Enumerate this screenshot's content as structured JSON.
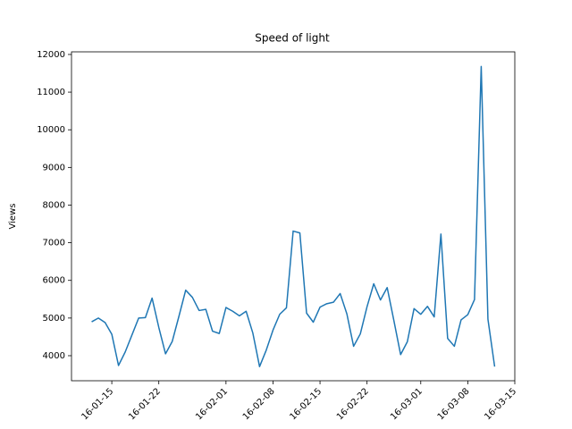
{
  "chart_data": {
    "type": "line",
    "title": "Speed of light",
    "ylabel": "Views",
    "x": [
      "16-01-12",
      "16-01-13",
      "16-01-14",
      "16-01-15",
      "16-01-16",
      "16-01-17",
      "16-01-18",
      "16-01-19",
      "16-01-20",
      "16-01-21",
      "16-01-22",
      "16-01-23",
      "16-01-24",
      "16-01-25",
      "16-01-26",
      "16-01-27",
      "16-01-28",
      "16-01-29",
      "16-01-30",
      "16-01-31",
      "16-02-01",
      "16-02-02",
      "16-02-03",
      "16-02-04",
      "16-02-05",
      "16-02-06",
      "16-02-07",
      "16-02-08",
      "16-02-09",
      "16-02-10",
      "16-02-11",
      "16-02-12",
      "16-02-13",
      "16-02-14",
      "16-02-15",
      "16-02-16",
      "16-02-17",
      "16-02-18",
      "16-02-19",
      "16-02-20",
      "16-02-21",
      "16-02-22",
      "16-02-23",
      "16-02-24",
      "16-02-25",
      "16-02-26",
      "16-02-27",
      "16-02-28",
      "16-02-29",
      "16-03-01",
      "16-03-02",
      "16-03-03",
      "16-03-04",
      "16-03-05",
      "16-03-06",
      "16-03-07",
      "16-03-08",
      "16-03-09",
      "16-03-10",
      "16-03-11",
      "16-03-12"
    ],
    "series": [
      {
        "color": "#1f77b4",
        "values": [
          4900,
          5000,
          4880,
          4570,
          3740,
          4100,
          4550,
          5000,
          5010,
          5530,
          4750,
          4050,
          4380,
          5050,
          5740,
          5550,
          5200,
          5230,
          4650,
          4590,
          5280,
          5180,
          5060,
          5180,
          4600,
          3710,
          4150,
          4680,
          5100,
          5270,
          7310,
          7260,
          5130,
          4890,
          5290,
          5380,
          5420,
          5650,
          5110,
          4250,
          4580,
          5300,
          5910,
          5480,
          5810,
          4930,
          4030,
          4370,
          5250,
          5100,
          5310,
          5030,
          7230,
          4460,
          4250,
          4950,
          5090,
          5490,
          11680,
          4970,
          3710
        ]
      }
    ],
    "xlim": [
      "16-01-09",
      "16-03-15"
    ],
    "xticks": [
      "16-01-15",
      "16-01-22",
      "16-02-01",
      "16-02-08",
      "16-02-15",
      "16-02-22",
      "16-03-01",
      "16-03-08",
      "16-03-15"
    ],
    "ylim": [
      3335,
      12070
    ],
    "yticks": [
      4000,
      5000,
      6000,
      7000,
      8000,
      9000,
      10000,
      11000,
      12000
    ]
  }
}
